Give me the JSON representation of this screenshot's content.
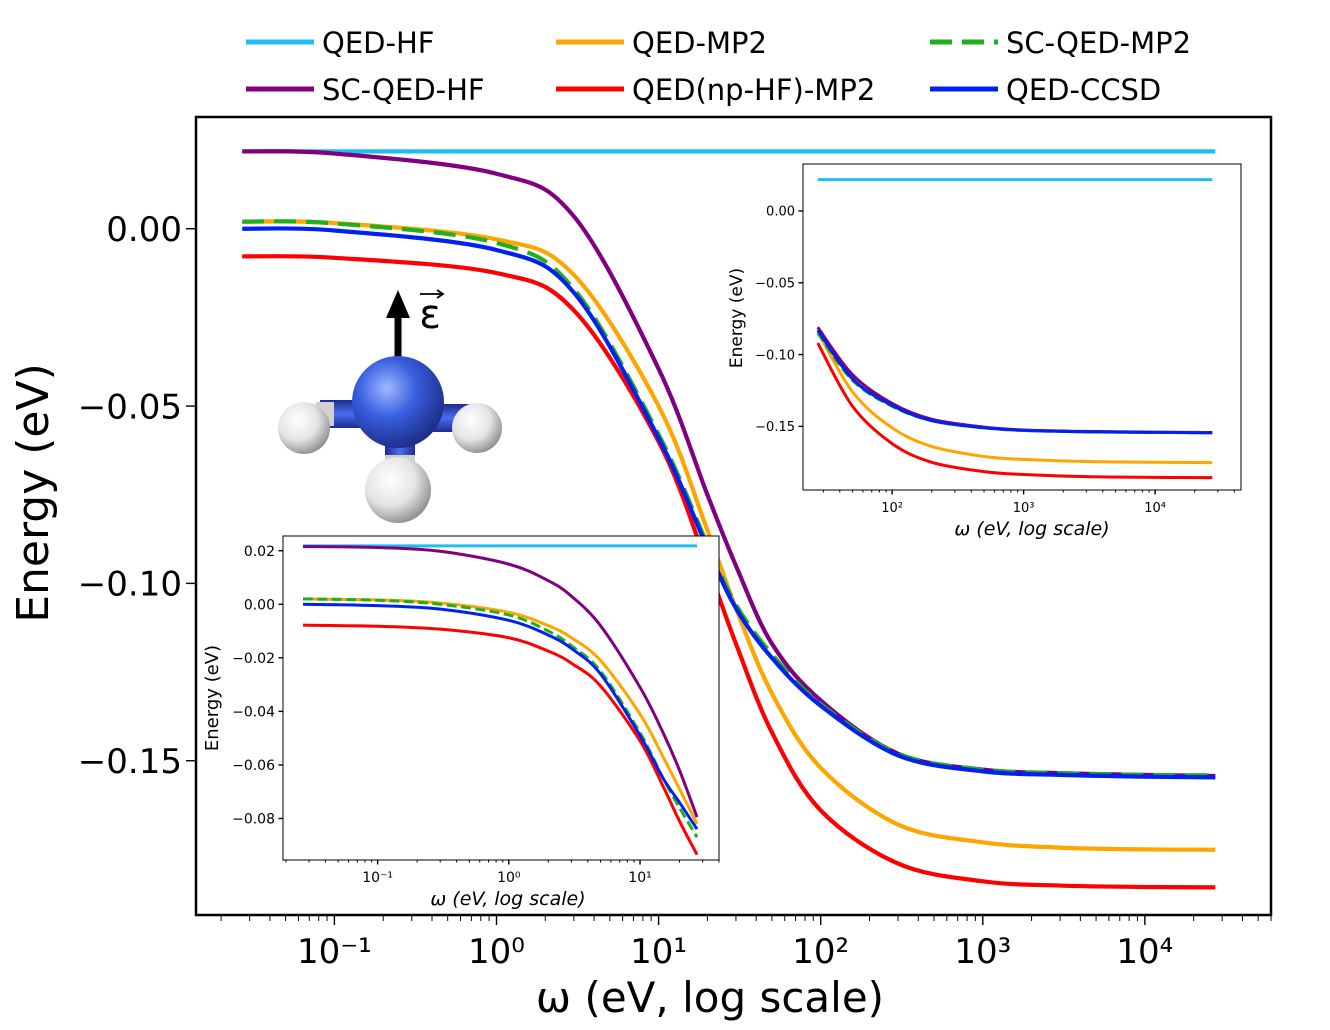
{
  "colors": {
    "qed_hf": "#1ebef0",
    "sc_qed_hf": "#800080",
    "qed_mp2": "#ffa500",
    "qed_np_hf_mp2": "#ff0000",
    "sc_qed_mp2": "#1faf1f",
    "qed_ccsd": "#0022ee"
  },
  "legend": [
    {
      "label": "QED-HF",
      "color": "#1ebef0",
      "dash": "none"
    },
    {
      "label": "QED-MP2",
      "color": "#ffa500",
      "dash": "none"
    },
    {
      "label": "SC-QED-MP2",
      "color": "#1faf1f",
      "dash": "22,10"
    },
    {
      "label": "SC-QED-HF",
      "color": "#800080",
      "dash": "none"
    },
    {
      "label": "QED(np-HF)-MP2",
      "color": "#ff0000",
      "dash": "none"
    },
    {
      "label": "QED-CCSD",
      "color": "#0022ee",
      "dash": "none"
    }
  ],
  "molecule": {
    "field_label": "ε",
    "icon": "ammonia-molecule-icon"
  },
  "chart_data": [
    {
      "type": "line",
      "name": "main",
      "xlabel": "ω (eV, log scale)",
      "ylabel": "Energy (eV)",
      "xscale": "log",
      "xlim": [
        0.014,
        60000
      ],
      "ylim": [
        -0.1935,
        0.0315
      ],
      "xticks": [
        {
          "value": 0.1,
          "label": "10⁻¹"
        },
        {
          "value": 1,
          "label": "10⁰"
        },
        {
          "value": 10,
          "label": "10¹"
        },
        {
          "value": 100,
          "label": "10²"
        },
        {
          "value": 1000,
          "label": "10³"
        },
        {
          "value": 10000,
          "label": "10⁴"
        }
      ],
      "yticks": [
        {
          "value": 0.0,
          "label": "0.00"
        },
        {
          "value": -0.05,
          "label": "−0.05"
        },
        {
          "value": -0.1,
          "label": "−0.10"
        },
        {
          "value": -0.15,
          "label": "−0.15"
        }
      ],
      "grid": false,
      "x": [
        0.027,
        0.1,
        1,
        3,
        10,
        20,
        30,
        50,
        100,
        300,
        1000,
        3000,
        10000,
        27200
      ],
      "series": [
        {
          "name": "QED-HF",
          "key": "qed_hf",
          "color": "#1ebef0",
          "dash": "none",
          "values": [
            0.0218,
            0.0218,
            0.0218,
            0.0218,
            0.0218,
            0.0218,
            0.0218,
            0.0218,
            0.0218,
            0.0218,
            0.0218,
            0.0218,
            0.0218,
            0.0218
          ]
        },
        {
          "name": "SC-QED-HF",
          "key": "sc_qed_hf",
          "color": "#800080",
          "dash": "none",
          "values": [
            0.0218,
            0.0212,
            0.0155,
            0.0035,
            -0.0395,
            -0.075,
            -0.095,
            -0.117,
            -0.133,
            -0.148,
            -0.1525,
            -0.1535,
            -0.154,
            -0.1543
          ]
        },
        {
          "name": "QED-MP2",
          "key": "qed_mp2",
          "color": "#ffa500",
          "dash": "none",
          "values": [
            0.002,
            0.0016,
            -0.003,
            -0.013,
            -0.05,
            -0.085,
            -0.107,
            -0.131,
            -0.152,
            -0.168,
            -0.173,
            -0.1745,
            -0.175,
            -0.1751
          ]
        },
        {
          "name": "QED(np-HF)-MP2",
          "key": "qed_np_hf_mp2",
          "color": "#ff0000",
          "dash": "none",
          "values": [
            -0.0078,
            -0.0082,
            -0.0125,
            -0.023,
            -0.06,
            -0.095,
            -0.117,
            -0.142,
            -0.164,
            -0.179,
            -0.184,
            -0.1852,
            -0.1856,
            -0.1857
          ]
        },
        {
          "name": "SC-QED-MP2",
          "key": "sc_qed_mp2",
          "color": "#1faf1f",
          "dash": "22,10",
          "values": [
            0.002,
            0.0015,
            -0.004,
            -0.017,
            -0.058,
            -0.089,
            -0.106,
            -0.12,
            -0.134,
            -0.148,
            -0.1525,
            -0.1535,
            -0.154,
            -0.1541
          ]
        },
        {
          "name": "QED-CCSD",
          "key": "qed_ccsd",
          "color": "#0022ee",
          "dash": "none",
          "values": [
            0.0,
            -0.0005,
            -0.006,
            -0.018,
            -0.059,
            -0.09,
            -0.107,
            -0.121,
            -0.1345,
            -0.1485,
            -0.153,
            -0.154,
            -0.1545,
            -0.1547
          ]
        }
      ]
    },
    {
      "type": "line",
      "name": "inset-low",
      "xlabel": "ω (eV, log scale)",
      "ylabel": "Energy (eV)",
      "xscale": "log",
      "xlim": [
        0.019,
        40
      ],
      "ylim": [
        -0.0955,
        0.0255
      ],
      "xticks": [
        {
          "value": 0.1,
          "label": "10⁻¹"
        },
        {
          "value": 1,
          "label": "10⁰"
        },
        {
          "value": 10,
          "label": "10¹"
        }
      ],
      "yticks": [
        {
          "value": 0.02,
          "label": "0.02"
        },
        {
          "value": 0.0,
          "label": "0.00"
        },
        {
          "value": -0.02,
          "label": "−0.02"
        },
        {
          "value": -0.04,
          "label": "−0.04"
        },
        {
          "value": -0.06,
          "label": "−0.06"
        },
        {
          "value": -0.08,
          "label": "−0.08"
        }
      ],
      "grid": false,
      "x": [
        0.027,
        0.1,
        0.3,
        1,
        2,
        3,
        5,
        10,
        15,
        20,
        27.2
      ],
      "series": [
        {
          "name": "QED-HF",
          "key": "qed_hf",
          "color": "#1ebef0",
          "dash": "none",
          "values": [
            0.0218,
            0.0218,
            0.0218,
            0.0218,
            0.0218,
            0.0218,
            0.0218,
            0.0218,
            0.0218,
            0.0218,
            0.0218
          ]
        },
        {
          "name": "SC-QED-HF",
          "key": "sc_qed_hf",
          "color": "#800080",
          "dash": "none",
          "values": [
            0.0216,
            0.0212,
            0.0198,
            0.015,
            0.0088,
            0.003,
            -0.008,
            -0.031,
            -0.048,
            -0.062,
            -0.0795
          ]
        },
        {
          "name": "QED-MP2",
          "key": "qed_mp2",
          "color": "#ffa500",
          "dash": "none",
          "values": [
            0.002,
            0.0016,
            0.0005,
            -0.003,
            -0.008,
            -0.0125,
            -0.021,
            -0.041,
            -0.057,
            -0.069,
            -0.082
          ]
        },
        {
          "name": "QED(np-HF)-MP2",
          "key": "qed_np_hf_mp2",
          "color": "#ff0000",
          "dash": "none",
          "values": [
            -0.0078,
            -0.0082,
            -0.0093,
            -0.0125,
            -0.0175,
            -0.022,
            -0.0305,
            -0.051,
            -0.068,
            -0.081,
            -0.0935
          ]
        },
        {
          "name": "SC-QED-MP2",
          "key": "sc_qed_mp2",
          "color": "#1faf1f",
          "dash": "22,10",
          "values": [
            0.002,
            0.0015,
            0.0,
            -0.004,
            -0.01,
            -0.0155,
            -0.025,
            -0.048,
            -0.065,
            -0.076,
            -0.087
          ]
        },
        {
          "name": "QED-CCSD",
          "key": "qed_ccsd",
          "color": "#0022ee",
          "dash": "none",
          "values": [
            0.0,
            -0.0005,
            -0.0018,
            -0.006,
            -0.0115,
            -0.0165,
            -0.026,
            -0.049,
            -0.065,
            -0.074,
            -0.084
          ]
        }
      ]
    },
    {
      "type": "line",
      "name": "inset-high",
      "xlabel": "ω (eV, log scale)",
      "ylabel": "Energy (eV)",
      "xscale": "log",
      "xlim": [
        21,
        45000
      ],
      "ylim": [
        -0.1943,
        0.0327
      ],
      "xticks": [
        {
          "value": 100,
          "label": "10²"
        },
        {
          "value": 1000,
          "label": "10³"
        },
        {
          "value": 10000,
          "label": "10⁴"
        }
      ],
      "yticks": [
        {
          "value": 0.0,
          "label": "0.00"
        },
        {
          "value": -0.05,
          "label": "−0.05"
        },
        {
          "value": -0.1,
          "label": "−0.10"
        },
        {
          "value": -0.15,
          "label": "−0.15"
        }
      ],
      "grid": false,
      "x": [
        27.2,
        50,
        100,
        200,
        500,
        1000,
        3000,
        10000,
        27200
      ],
      "series": [
        {
          "name": "QED-HF",
          "key": "qed_hf",
          "color": "#1ebef0",
          "dash": "none",
          "values": [
            0.0218,
            0.0218,
            0.0218,
            0.0218,
            0.0218,
            0.0218,
            0.0218,
            0.0218,
            0.0218
          ]
        },
        {
          "name": "SC-QED-HF",
          "key": "sc_qed_hf",
          "color": "#800080",
          "dash": "none",
          "values": [
            -0.081,
            -0.114,
            -0.134,
            -0.145,
            -0.1505,
            -0.1525,
            -0.1535,
            -0.154,
            -0.1543
          ]
        },
        {
          "name": "QED-MP2",
          "key": "qed_mp2",
          "color": "#ffa500",
          "dash": "none",
          "values": [
            -0.084,
            -0.126,
            -0.151,
            -0.164,
            -0.171,
            -0.173,
            -0.1745,
            -0.175,
            -0.1752
          ]
        },
        {
          "name": "QED(np-HF)-MP2",
          "key": "qed_np_hf_mp2",
          "color": "#ff0000",
          "dash": "none",
          "values": [
            -0.092,
            -0.136,
            -0.162,
            -0.175,
            -0.1815,
            -0.1835,
            -0.185,
            -0.1855,
            -0.1857
          ]
        },
        {
          "name": "SC-QED-MP2",
          "key": "sc_qed_mp2",
          "color": "#1faf1f",
          "dash": "22,10",
          "values": [
            -0.085,
            -0.118,
            -0.136,
            -0.146,
            -0.151,
            -0.1528,
            -0.1538,
            -0.1542,
            -0.1544
          ]
        },
        {
          "name": "QED-CCSD",
          "key": "qed_ccsd",
          "color": "#0022ee",
          "dash": "none",
          "values": [
            -0.083,
            -0.117,
            -0.1355,
            -0.146,
            -0.151,
            -0.1528,
            -0.1538,
            -0.1542,
            -0.1545
          ]
        }
      ]
    }
  ]
}
